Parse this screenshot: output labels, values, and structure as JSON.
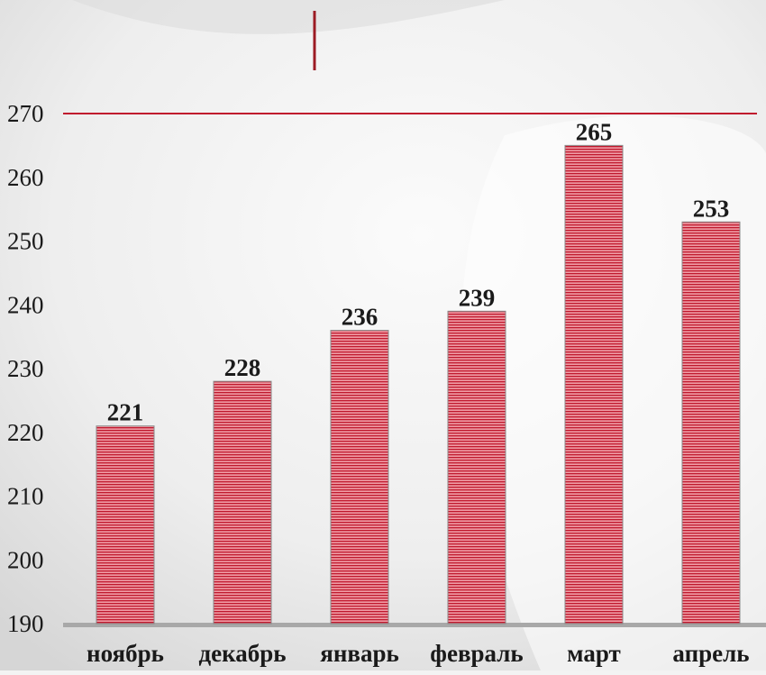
{
  "chart_data": {
    "type": "bar",
    "title": "",
    "xlabel": "",
    "ylabel": "",
    "categories": [
      "ноябрь",
      "декабрь",
      "январь",
      "февраль",
      "март",
      "апрель"
    ],
    "values": [
      221,
      228,
      236,
      239,
      265,
      253
    ],
    "ylim": [
      190,
      270
    ],
    "yticks": [
      190,
      200,
      210,
      220,
      230,
      240,
      250,
      260,
      270
    ],
    "grid": false,
    "legend": "none",
    "data_labels": true
  },
  "colors": {
    "bar_fill": "#e8858f",
    "bar_stripe": "#c0182d",
    "accent_line": "#c0182d",
    "axis": "#a8a8a8",
    "text": "#1a1a1a"
  }
}
